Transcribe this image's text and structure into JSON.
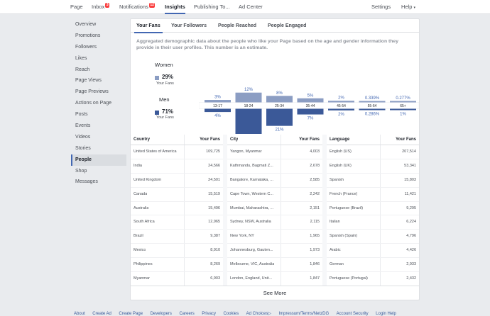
{
  "nav": {
    "items": [
      {
        "label": "Page"
      },
      {
        "label": "Inbox",
        "badge": "3"
      },
      {
        "label": "Notifications",
        "badge": "12"
      },
      {
        "label": "Insights"
      },
      {
        "label": "Publishing To..."
      },
      {
        "label": "Ad Center"
      }
    ],
    "settings": "Settings",
    "help": "Help",
    "help_caret": "▾",
    "accent": "#4267b2"
  },
  "sidebar": {
    "items": [
      {
        "label": "Overview"
      },
      {
        "label": "Promotions"
      },
      {
        "label": "Followers"
      },
      {
        "label": "Likes"
      },
      {
        "label": "Reach"
      },
      {
        "label": "Page Views"
      },
      {
        "label": "Page Previews"
      },
      {
        "label": "Actions on Page"
      },
      {
        "label": "Posts"
      },
      {
        "label": "Events"
      },
      {
        "label": "Videos"
      },
      {
        "label": "Stories"
      },
      {
        "label": "People"
      },
      {
        "label": "Shop"
      },
      {
        "label": "Messages"
      }
    ],
    "active": "People"
  },
  "tabs": [
    "Your Fans",
    "Your Followers",
    "People Reached",
    "People Engaged"
  ],
  "description": "Aggregated demographic data about the people who like your Page based on the age and gender information they provide in their user profiles. This number is an estimate.",
  "legend": {
    "women": {
      "title": "Women",
      "pct": "29%",
      "sub": "Your Fans",
      "color": "#8b9dc3"
    },
    "men": {
      "title": "Men",
      "pct": "71%",
      "sub": "Your Fans",
      "color": "#3b5998"
    }
  },
  "chart_data": {
    "type": "bar",
    "categories": [
      "13-17",
      "18-24",
      "25-34",
      "35-44",
      "45-54",
      "55-64",
      "65+"
    ],
    "series": [
      {
        "name": "Women",
        "values": [
          3,
          12,
          8,
          5,
          2,
          0.339,
          0.277
        ],
        "labels": [
          "3%",
          "12%",
          "8%",
          "5%",
          "2%",
          "0.339%",
          "0.277%"
        ]
      },
      {
        "name": "Men",
        "values": [
          4,
          35,
          21,
          7,
          2,
          0.286,
          1
        ],
        "labels": [
          "4%",
          "35%",
          "21%",
          "7%",
          "2%",
          "0.286%",
          "1%"
        ]
      }
    ]
  },
  "tables": [
    {
      "headers": [
        "Country",
        "Your Fans"
      ],
      "rows": [
        [
          "United States of America",
          "109,725"
        ],
        [
          "India",
          "24,566"
        ],
        [
          "United Kingdom",
          "24,501"
        ],
        [
          "Canada",
          "15,519"
        ],
        [
          "Australia",
          "15,496"
        ],
        [
          "South Africa",
          "12,965"
        ],
        [
          "Brazil",
          "9,387"
        ],
        [
          "Mexico",
          "8,910"
        ],
        [
          "Philippines",
          "8,269"
        ],
        [
          "Myanmar",
          "6,903"
        ]
      ]
    },
    {
      "headers": [
        "City",
        "Your Fans"
      ],
      "rows": [
        [
          "Yangon, Myanmar",
          "4,003"
        ],
        [
          "Kathmandu, Bagmati Z...",
          "2,678"
        ],
        [
          "Bangalore, Karnataka, ...",
          "2,585"
        ],
        [
          "Cape Town, Western C...",
          "2,242"
        ],
        [
          "Mumbai, Maharashtra, ...",
          "2,151"
        ],
        [
          "Sydney, NSW, Australia",
          "2,115"
        ],
        [
          "New York, NY",
          "1,965"
        ],
        [
          "Johannesburg, Gauten...",
          "1,973"
        ],
        [
          "Melbourne, VIC, Australia",
          "1,846"
        ],
        [
          "London, England, Unit...",
          "1,847"
        ]
      ]
    },
    {
      "headers": [
        "Language",
        "Your Fans"
      ],
      "rows": [
        [
          "English (US)",
          "207,514"
        ],
        [
          "English (UK)",
          "53,341"
        ],
        [
          "Spanish",
          "15,803"
        ],
        [
          "French (France)",
          "11,421"
        ],
        [
          "Portuguese (Brazil)",
          "9,295"
        ],
        [
          "Italian",
          "6,224"
        ],
        [
          "Spanish (Spain)",
          "4,796"
        ],
        [
          "Arabic",
          "4,426"
        ],
        [
          "German",
          "2,933"
        ],
        [
          "Portuguese (Portugal)",
          "2,432"
        ]
      ]
    }
  ],
  "see_more": "See More",
  "footer": [
    "About",
    "Create Ad",
    "Create Page",
    "Developers",
    "Careers",
    "Privacy",
    "Cookies",
    "Ad Choices▷",
    "Impressum/Terms/NetzDG",
    "Account Security",
    "Login Help"
  ]
}
